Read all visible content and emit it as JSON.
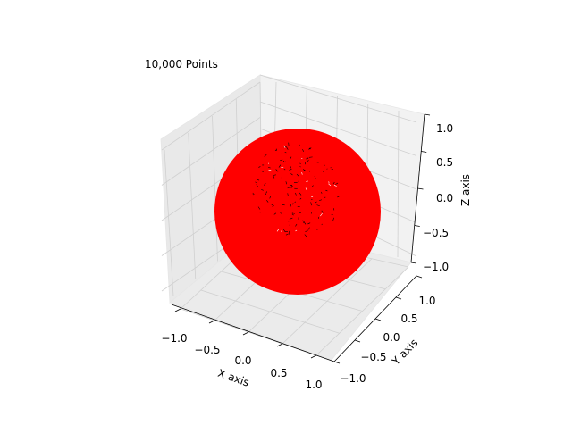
{
  "chart_data": {
    "type": "scatter",
    "projection": "3d",
    "title": "10,000 Points",
    "xlabel": "X axis",
    "ylabel": "Y axis",
    "zlabel": "Z axis",
    "xlim": [
      -1.2,
      1.2
    ],
    "ylim": [
      -1.2,
      1.2
    ],
    "zlim": [
      -1.1,
      1.1
    ],
    "xticks": [
      -1.0,
      -0.5,
      0.0,
      0.5,
      1.0
    ],
    "yticks": [
      -1.0,
      -0.5,
      0.0,
      0.5,
      1.0
    ],
    "zticks": [
      -1.0,
      -0.5,
      0.0,
      0.5,
      1.0
    ],
    "xtick_labels": [
      "−1.0",
      "−0.5",
      "0.0",
      "0.5",
      "1.0"
    ],
    "ytick_labels": [
      "−1.0",
      "−0.5",
      "0.0",
      "0.5",
      "1.0"
    ],
    "ztick_labels": [
      "−1.0",
      "−0.5",
      "0.0",
      "0.5",
      "1.0"
    ],
    "grid": true,
    "series": [
      {
        "shape": "unit sphere surface",
        "center": [
          0,
          0,
          0
        ],
        "radius": 1.0,
        "point_count": 10000,
        "color": "#ff0000",
        "marker_edge_color": "#000000"
      }
    ]
  }
}
